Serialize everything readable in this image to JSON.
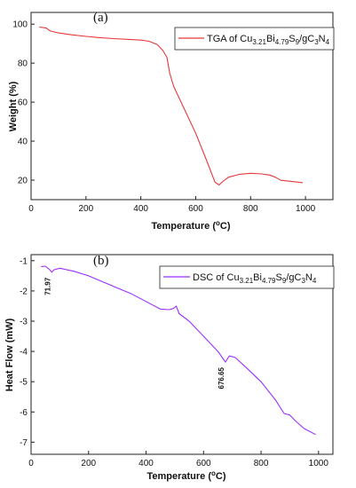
{
  "chart_data": [
    {
      "type": "line",
      "panel_label": "(a)",
      "xlabel": "Temperature (°C)",
      "ylabel": "Weight (%)",
      "xlim": [
        0,
        1100
      ],
      "ylim": [
        10,
        106
      ],
      "xticks": [
        "0",
        "200",
        "400",
        "600",
        "800",
        "1000"
      ],
      "yticks": [
        "20",
        "40",
        "60",
        "80",
        "100"
      ],
      "legend_position": "top-right",
      "series": [
        {
          "name": "TGA of Cu3.21Bi4.79S9/gC3N4",
          "color": "#e5383b",
          "x": [
            30,
            55,
            70,
            100,
            150,
            200,
            250,
            300,
            350,
            400,
            430,
            460,
            480,
            495,
            505,
            520,
            560,
            600,
            640,
            670,
            685,
            700,
            720,
            760,
            800,
            840,
            870,
            890,
            910,
            960,
            990
          ],
          "y": [
            98.5,
            98,
            96.5,
            95.5,
            94.5,
            93.7,
            93.1,
            92.6,
            92.2,
            91.8,
            91.2,
            89.5,
            86.5,
            83,
            75,
            68,
            56,
            44,
            30,
            19,
            17.5,
            19.5,
            21.5,
            23,
            23.5,
            23.2,
            22.6,
            21.5,
            19.9,
            19.2,
            18.7
          ]
        }
      ]
    },
    {
      "type": "line",
      "panel_label": "(b)",
      "xlabel": "Temperature (°C)",
      "ylabel": "Heat Flow (mW)",
      "xlim": [
        0,
        1050
      ],
      "ylim": [
        -7.4,
        -0.8
      ],
      "xticks": [
        "0",
        "200",
        "400",
        "600",
        "800",
        "1000"
      ],
      "yticks": [
        "-1",
        "-2",
        "-3",
        "-4",
        "-5",
        "-6",
        "-7"
      ],
      "legend_position": "top-right",
      "annotations": [
        {
          "text": "71.97",
          "x": 71.97,
          "y": -1.38
        },
        {
          "text": "676.65",
          "x": 676.65,
          "y": -4.35
        }
      ],
      "series": [
        {
          "name": "DSC of Cu3.21Bi4.79S9/gC3N4",
          "color": "#9b30ff",
          "x": [
            35,
            50,
            65,
            72,
            80,
            100,
            150,
            200,
            250,
            300,
            350,
            400,
            450,
            480,
            495,
            505,
            515,
            550,
            600,
            650,
            676,
            690,
            710,
            750,
            800,
            850,
            880,
            900,
            920,
            950,
            990
          ],
          "y": [
            -1.2,
            -1.18,
            -1.3,
            -1.38,
            -1.3,
            -1.25,
            -1.35,
            -1.5,
            -1.7,
            -1.9,
            -2.1,
            -2.35,
            -2.6,
            -2.62,
            -2.58,
            -2.5,
            -2.75,
            -3.0,
            -3.5,
            -4.0,
            -4.35,
            -4.15,
            -4.2,
            -4.55,
            -5.0,
            -5.6,
            -6.05,
            -6.1,
            -6.3,
            -6.55,
            -6.75
          ]
        }
      ]
    }
  ]
}
